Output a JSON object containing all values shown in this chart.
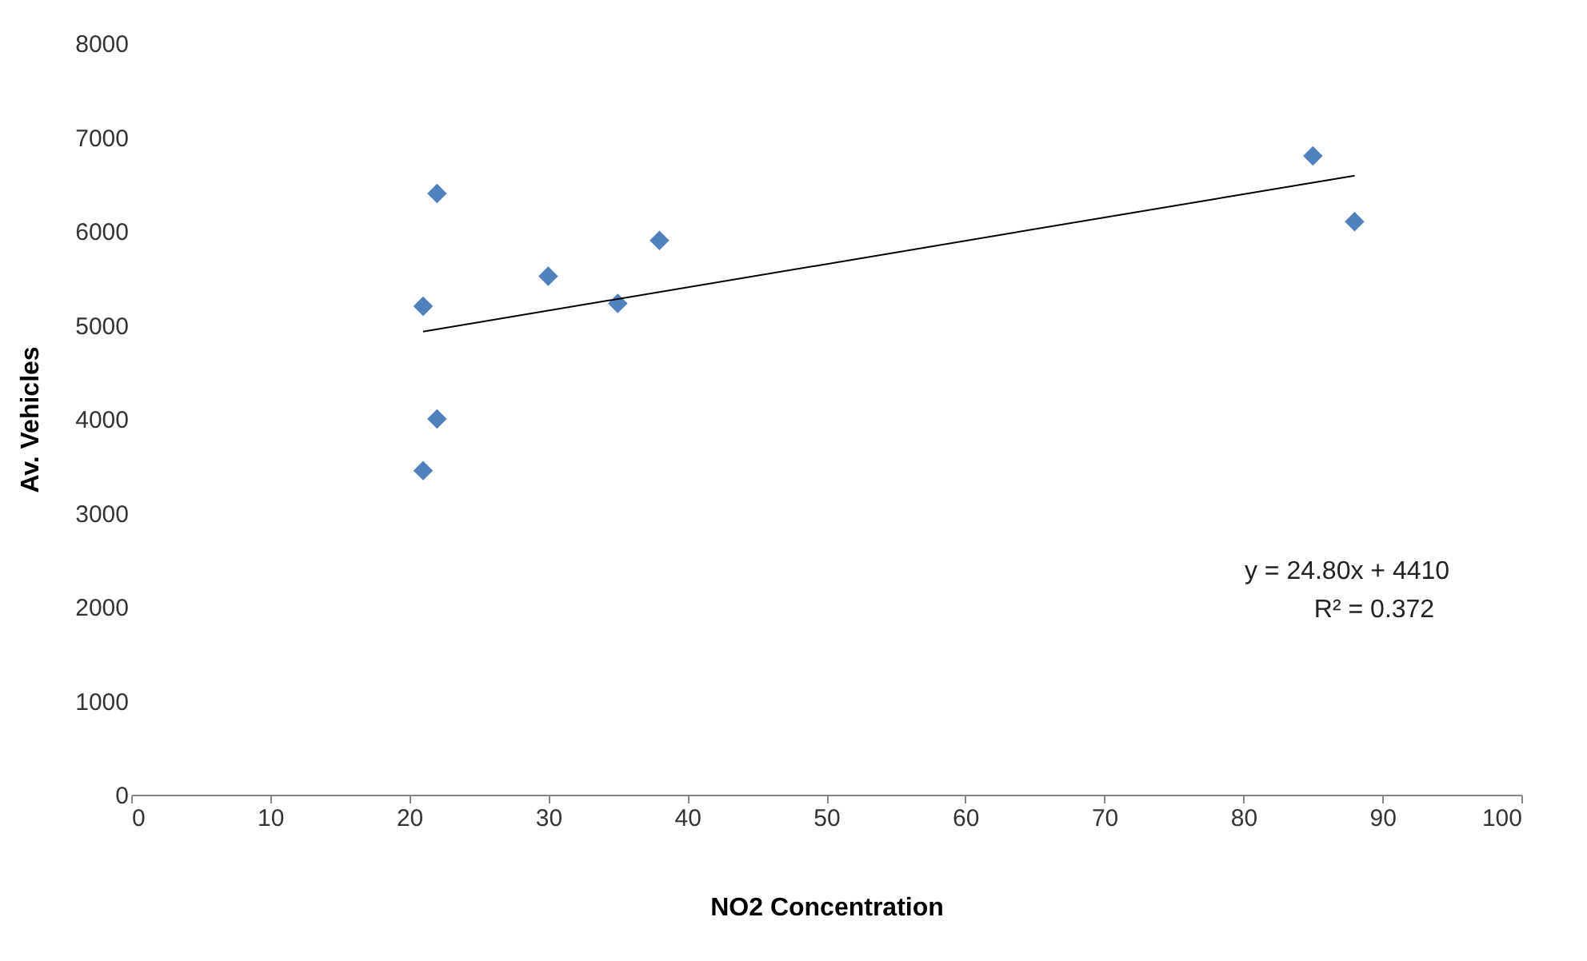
{
  "chart_data": {
    "type": "scatter",
    "xlabel": "NO2 Concentration",
    "ylabel": "Av. Vehicles",
    "xlim": [
      0,
      100
    ],
    "xticks": [
      0,
      10,
      20,
      30,
      40,
      50,
      60,
      70,
      80,
      90,
      100
    ],
    "ylim": [
      0,
      8000
    ],
    "yticks": [
      0,
      1000,
      2000,
      3000,
      4000,
      5000,
      6000,
      7000,
      8000
    ],
    "grid": false,
    "series": [
      {
        "color": "#4f81bd",
        "marker": "diamond",
        "x": [
          21,
          21,
          22,
          22,
          30,
          35,
          38,
          85,
          88
        ],
        "values": [
          3450,
          5200,
          6400,
          4000,
          5520,
          5230,
          5900,
          6800,
          6100
        ]
      },
      {
        "type": "line",
        "color": "#000000",
        "marker": "none",
        "x": [
          21,
          88
        ],
        "values": [
          4930,
          6590
        ],
        "line_style": "solid"
      }
    ],
    "annotations": [
      "y = 24.80x + 4410",
      "R² = 0.372"
    ]
  }
}
